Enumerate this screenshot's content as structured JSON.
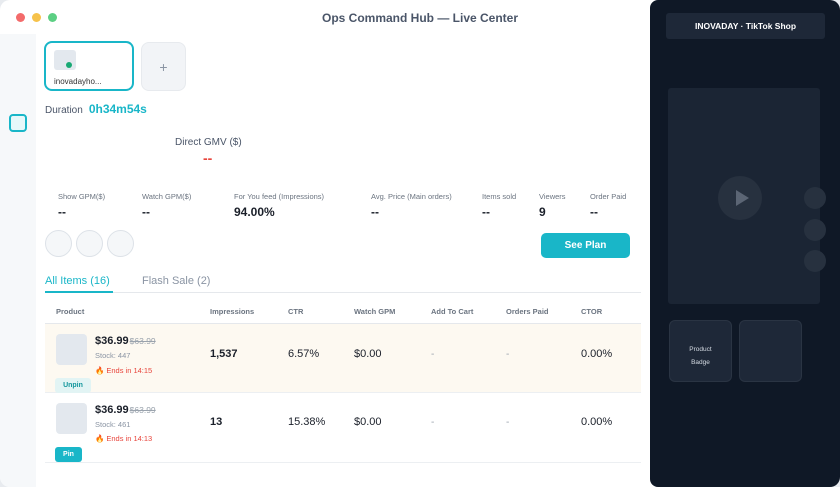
{
  "window": {
    "title": "Ops Command Hub — Live Center",
    "dot_colors": [
      "#f36b6b",
      "#f6c24b",
      "#5ccf83"
    ]
  },
  "room": {
    "name": "inovadayho...",
    "add_label": "+"
  },
  "duration": {
    "label": "Duration",
    "value": "0h34m54s"
  },
  "gmv": {
    "label": "Direct GMV ($)",
    "value": "--"
  },
  "stats": [
    {
      "label": "Show GPM($)",
      "value": "--"
    },
    {
      "label": "Watch GPM($)",
      "value": "--"
    },
    {
      "label": "For You feed (Impressions)",
      "value": "94.00%"
    },
    {
      "label": "Avg. Price (Main orders)",
      "value": "--"
    },
    {
      "label": "Items sold",
      "value": "--"
    },
    {
      "label": "Viewers",
      "value": "9"
    },
    {
      "label": "Order Paid",
      "value": "--"
    }
  ],
  "actions": {
    "see_plan": "See Plan"
  },
  "tabs": [
    {
      "label": "All Items (16)",
      "active": true
    },
    {
      "label": "Flash Sale (2)",
      "active": false
    }
  ],
  "table": {
    "headers": [
      "Product",
      "Impressions",
      "CTR",
      "Watch GPM",
      "Add To Cart",
      "Orders Paid",
      "CTOR"
    ],
    "rows": [
      {
        "price": "$36.99",
        "old_price": "$63.99",
        "stock": "Stock: 447",
        "ends": "Ends in 14:15",
        "pin_label": "Unpin",
        "impressions": "1,537",
        "ctr": "6.57%",
        "watch_gpm": "$0.00",
        "add_to_cart": "-",
        "orders_paid": "-",
        "ctor": "0.00%"
      },
      {
        "price": "$36.99",
        "old_price": "$63.99",
        "stock": "Stock: 461",
        "ends": "Ends in 14:13",
        "pin_label": "Pin",
        "impressions": "13",
        "ctr": "15.38%",
        "watch_gpm": "$0.00",
        "add_to_cart": "-",
        "orders_paid": "-",
        "ctor": "0.00%"
      }
    ]
  },
  "preview": {
    "shop_title": "INOVADAY · TikTok Shop",
    "badge_line1": "Product",
    "badge_line2": "Badge"
  },
  "colors": {
    "accent": "#19b6c8",
    "danger": "#e8453c",
    "preview_bg": "#0f1826"
  },
  "icons": [
    "sidebar-live-icon",
    "add-room-icon",
    "play-icon",
    "flame-icon"
  ]
}
